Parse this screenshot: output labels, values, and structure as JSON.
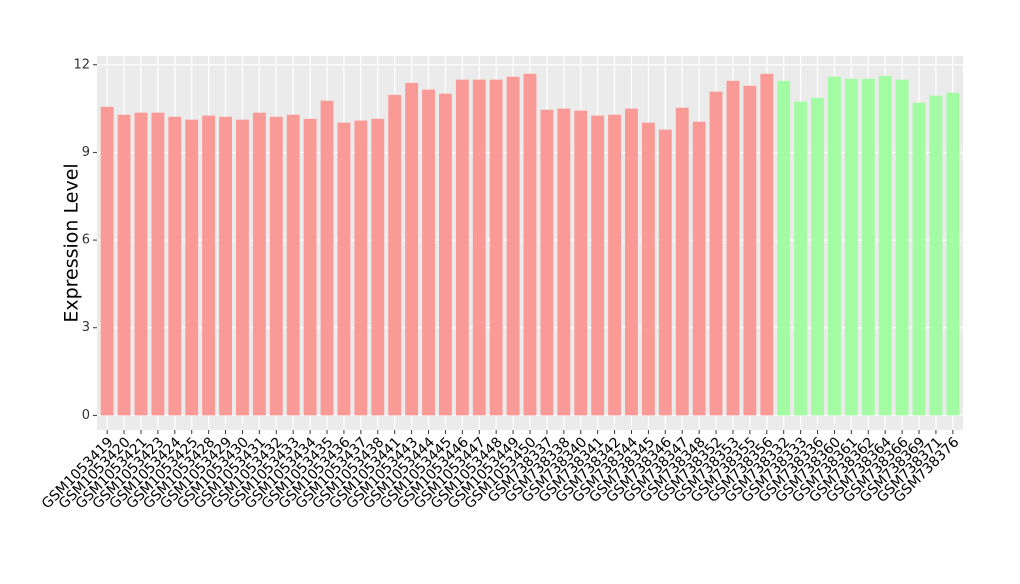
{
  "chart_data": {
    "type": "bar",
    "y_label": "Expression Level",
    "categories": [
      "GSM1053419",
      "GSM1053420",
      "GSM1053421",
      "GSM1053423",
      "GSM1053424",
      "GSM1053425",
      "GSM1053428",
      "GSM1053429",
      "GSM1053430",
      "GSM1053431",
      "GSM1053432",
      "GSM1053433",
      "GSM1053434",
      "GSM1053435",
      "GSM1053436",
      "GSM1053437",
      "GSM1053438",
      "GSM1053441",
      "GSM1053443",
      "GSM1053444",
      "GSM1053445",
      "GSM1053446",
      "GSM1053447",
      "GSM1053448",
      "GSM1053449",
      "GSM1053450",
      "GSM738337",
      "GSM738338",
      "GSM738340",
      "GSM738341",
      "GSM738342",
      "GSM738344",
      "GSM738345",
      "GSM738346",
      "GSM738347",
      "GSM738348",
      "GSM738352",
      "GSM738353",
      "GSM738355",
      "GSM738356",
      "GSM738332",
      "GSM738333",
      "GSM738336",
      "GSM738360",
      "GSM738361",
      "GSM738362",
      "GSM738364",
      "GSM738366",
      "GSM738369",
      "GSM738371",
      "GSM738376"
    ],
    "values": [
      10.56,
      10.29,
      10.36,
      10.36,
      10.22,
      10.12,
      10.26,
      10.22,
      10.12,
      10.36,
      10.22,
      10.29,
      10.15,
      10.77,
      10.02,
      10.09,
      10.15,
      10.97,
      11.38,
      11.15,
      11.01,
      11.49,
      11.49,
      11.49,
      11.59,
      11.69,
      10.46,
      10.5,
      10.43,
      10.26,
      10.29,
      10.5,
      10.02,
      9.78,
      10.53,
      10.05,
      11.08,
      11.45,
      11.28,
      11.69,
      11.45,
      10.74,
      10.87,
      11.59,
      11.52,
      11.52,
      11.62,
      11.49,
      10.7,
      10.94,
      11.04
    ],
    "colors": [
      "#f99a96",
      "#f99a96",
      "#f99a96",
      "#f99a96",
      "#f99a96",
      "#f99a96",
      "#f99a96",
      "#f99a96",
      "#f99a96",
      "#f99a96",
      "#f99a96",
      "#f99a96",
      "#f99a96",
      "#f99a96",
      "#f99a96",
      "#f99a96",
      "#f99a96",
      "#f99a96",
      "#f99a96",
      "#f99a96",
      "#f99a96",
      "#f99a96",
      "#f99a96",
      "#f99a96",
      "#f99a96",
      "#f99a96",
      "#f99a96",
      "#f99a96",
      "#f99a96",
      "#f99a96",
      "#f99a96",
      "#f99a96",
      "#f99a96",
      "#f99a96",
      "#f99a96",
      "#f99a96",
      "#f99a96",
      "#f99a96",
      "#f99a96",
      "#f99a96",
      "#a3fba3",
      "#a3fba3",
      "#a3fba3",
      "#a3fba3",
      "#a3fba3",
      "#a3fba3",
      "#a3fba3",
      "#a3fba3",
      "#a3fba3",
      "#a3fba3",
      "#a3fba3"
    ],
    "ylim": [
      -0.5,
      12.3
    ],
    "yticks": [
      0,
      3,
      6,
      9,
      12
    ],
    "grid": true
  }
}
